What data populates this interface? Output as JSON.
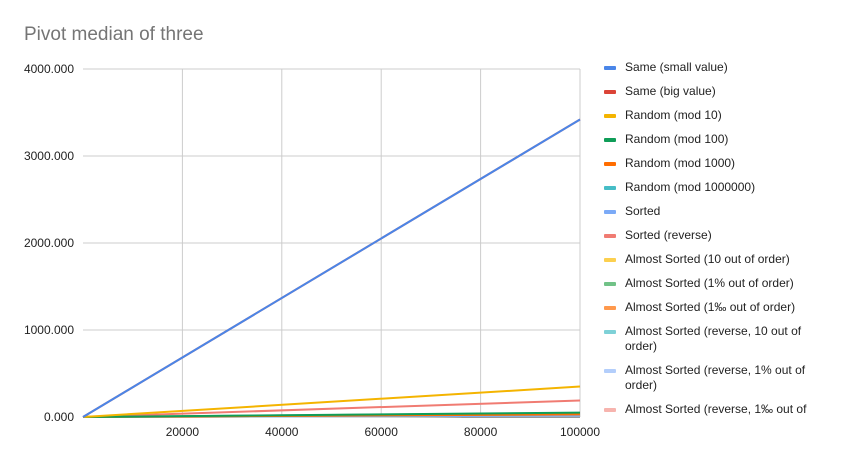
{
  "chart_data": {
    "type": "line",
    "title": "Pivot median of three",
    "xlabel": "",
    "ylabel": "",
    "xlim": [
      0,
      100000
    ],
    "ylim": [
      0,
      4000
    ],
    "x_ticks": [
      "20000",
      "40000",
      "60000",
      "80000",
      "100000"
    ],
    "y_ticks": [
      "0.000",
      "1000.000",
      "2000.000",
      "3000.000",
      "4000.000"
    ],
    "grid": true,
    "legend_position": "right",
    "x": [
      0,
      100000
    ],
    "series": [
      {
        "name": "Same (small value)",
        "color": "#4a86e8",
        "values": [
          0,
          3420
        ]
      },
      {
        "name": "Same (big value)",
        "color": "#db4437",
        "values": [
          0,
          3420
        ]
      },
      {
        "name": "Random (mod 10)",
        "color": "#f4b400",
        "values": [
          0,
          350
        ]
      },
      {
        "name": "Random (mod 100)",
        "color": "#0f9d58",
        "values": [
          0,
          50
        ]
      },
      {
        "name": "Random (mod 1000)",
        "color": "#ff6d00",
        "values": [
          0,
          30
        ]
      },
      {
        "name": "Random (mod 1000000)",
        "color": "#46bdc6",
        "values": [
          0,
          30
        ]
      },
      {
        "name": "Sorted",
        "color": "#7baaf7",
        "values": [
          0,
          15
        ]
      },
      {
        "name": "Sorted (reverse)",
        "color": "#f07b72",
        "values": [
          0,
          190
        ]
      },
      {
        "name": "Almost Sorted (10 out of order)",
        "color": "#fcd04f",
        "values": [
          0,
          15
        ]
      },
      {
        "name": "Almost Sorted (1% out of order)",
        "color": "#71c287",
        "values": [
          0,
          45
        ]
      },
      {
        "name": "Almost Sorted (1‰ out of order)",
        "color": "#ff994d",
        "values": [
          0,
          20
        ]
      },
      {
        "name": "Almost Sorted (reverse, 10 out of order)",
        "color": "#7ed1d7",
        "values": [
          0,
          15
        ]
      },
      {
        "name": "Almost Sorted (reverse, 1% out of order)",
        "color": "#b3cefb",
        "values": [
          0,
          20
        ]
      },
      {
        "name": "Almost Sorted (reverse, 1‰ out of",
        "color": "#f7b4ae",
        "values": [
          0,
          15
        ]
      }
    ]
  }
}
